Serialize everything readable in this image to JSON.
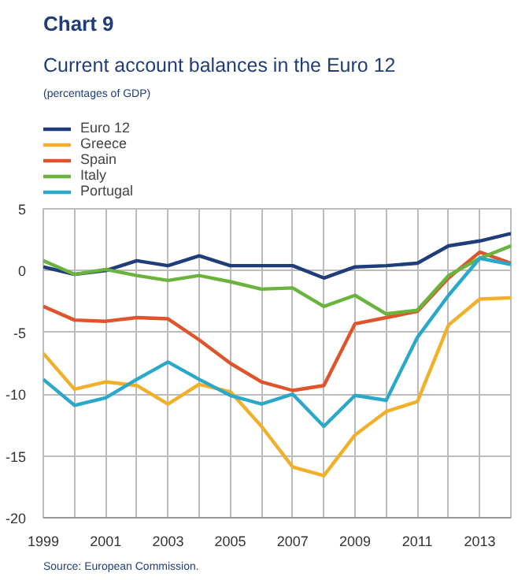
{
  "chart_data": {
    "type": "line",
    "title": "Chart 9",
    "subtitle": "Current account balances in the Euro 12",
    "annotations": [
      "(percentages of GDP)",
      "Source: European Commission."
    ],
    "x": [
      1999,
      2000,
      2001,
      2002,
      2003,
      2004,
      2005,
      2006,
      2007,
      2008,
      2009,
      2010,
      2011,
      2012,
      2013,
      2014
    ],
    "series": [
      {
        "name": "Euro 12",
        "color": "#1f3d7a",
        "values": [
          0.3,
          -0.3,
          0.0,
          0.8,
          0.4,
          1.2,
          0.4,
          0.4,
          0.4,
          -0.6,
          0.3,
          0.4,
          0.6,
          2.0,
          2.4,
          3.0
        ]
      },
      {
        "name": "Greece",
        "color": "#f2b02a",
        "values": [
          -6.7,
          -9.6,
          -9.0,
          -9.3,
          -10.8,
          -9.2,
          -9.8,
          -12.6,
          -15.9,
          -16.6,
          -13.3,
          -11.4,
          -10.6,
          -4.4,
          -2.3,
          -2.2
        ]
      },
      {
        "name": "Spain",
        "color": "#e0542c",
        "values": [
          -2.9,
          -4.0,
          -4.1,
          -3.8,
          -3.9,
          -5.6,
          -7.5,
          -9.0,
          -9.7,
          -9.3,
          -4.3,
          -3.8,
          -3.3,
          -0.6,
          1.5,
          0.6
        ]
      },
      {
        "name": "Italy",
        "color": "#6ab43e",
        "values": [
          0.8,
          -0.3,
          0.1,
          -0.4,
          -0.8,
          -0.4,
          -0.9,
          -1.5,
          -1.4,
          -2.9,
          -2.0,
          -3.5,
          -3.2,
          -0.4,
          1.0,
          2.0
        ]
      },
      {
        "name": "Portugal",
        "color": "#2aa8c9",
        "values": [
          -8.8,
          -10.9,
          -10.3,
          -8.8,
          -7.4,
          -8.8,
          -10.1,
          -10.8,
          -10.0,
          -12.6,
          -10.1,
          -10.5,
          -5.4,
          -2.0,
          1.0,
          0.5
        ]
      }
    ],
    "xlim": [
      1999,
      2014
    ],
    "ylim": [
      -20,
      5
    ],
    "xticks": [
      1999,
      {
        "value": 2000,
        "label": null
      },
      2001,
      {
        "value": 2002,
        "label": null
      },
      2003,
      {
        "value": 2004,
        "label": null
      },
      2005,
      {
        "value": 2006,
        "label": null
      },
      2007,
      {
        "value": 2008,
        "label": null
      },
      2009,
      {
        "value": 2010,
        "label": null
      },
      2011,
      {
        "value": 2012,
        "label": null
      },
      2013,
      {
        "value": 2014,
        "label": null
      }
    ],
    "yticks": [
      -20,
      -15,
      -10,
      -5,
      0,
      5
    ],
    "grid": true,
    "legend": "top left",
    "line_style": "solid",
    "marker": "none"
  }
}
